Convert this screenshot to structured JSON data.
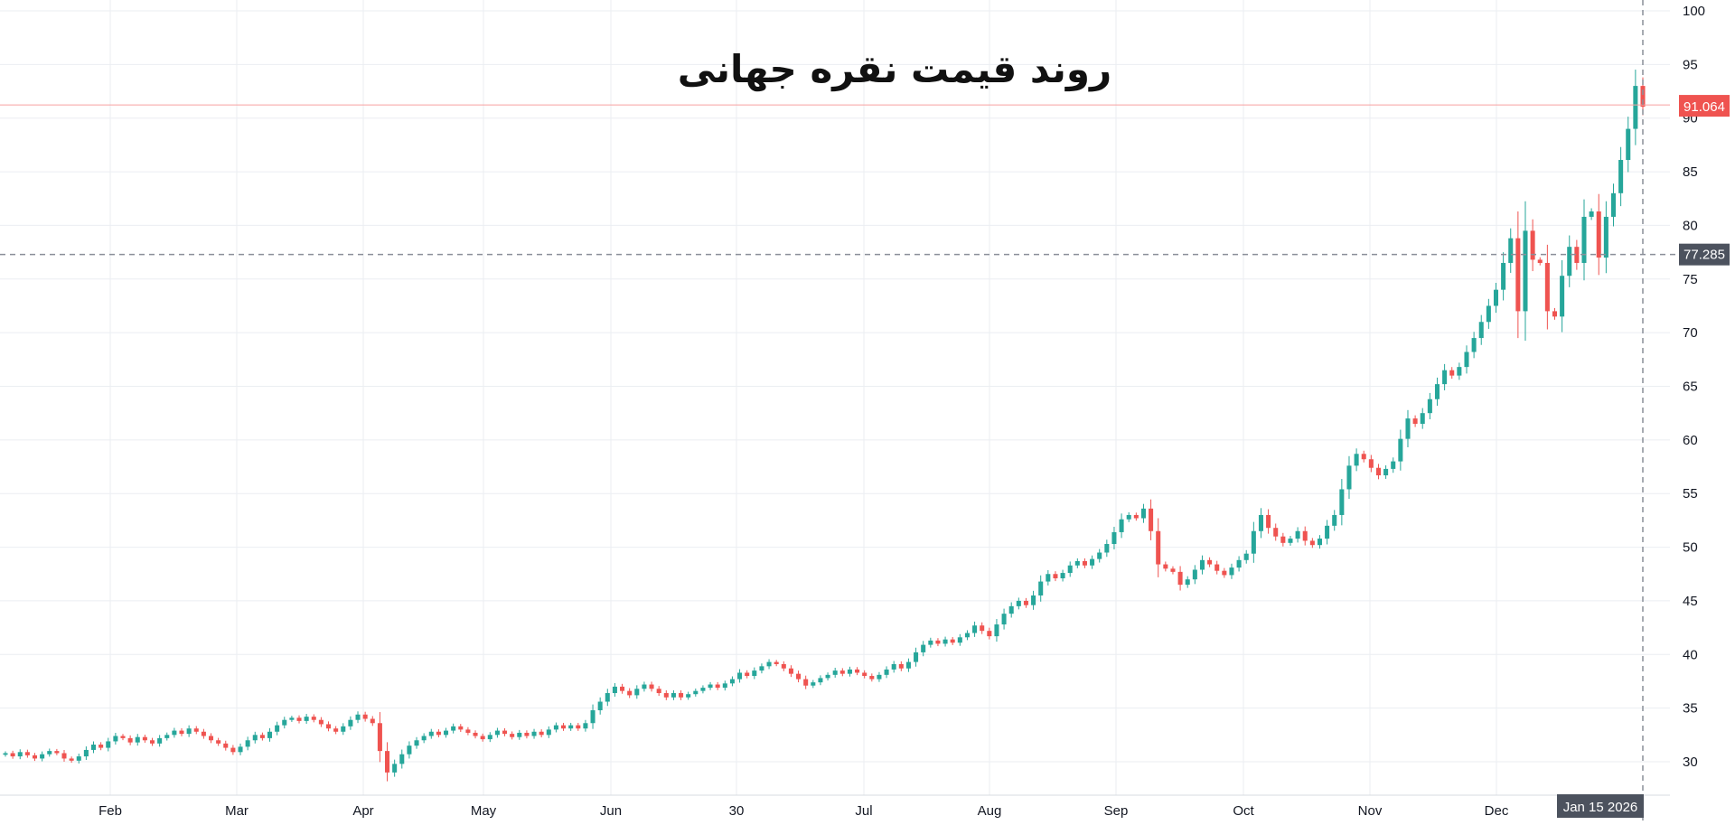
{
  "chart_data": {
    "type": "candlestick",
    "title": "روند قیمت نقره جهانی",
    "ylim": [
      26.5,
      101
    ],
    "y_ticks": [
      30,
      35,
      40,
      45,
      50,
      55,
      60,
      65,
      70,
      75,
      80,
      85,
      90,
      95,
      100
    ],
    "x_ticks": [
      "Feb",
      "Mar",
      "Apr",
      "May",
      "Jun",
      "30",
      "Jul",
      "Aug",
      "Sep",
      "Oct",
      "Nov",
      "Dec"
    ],
    "last_price": "91.064",
    "crosshair_price": "77.285",
    "crosshair_date": "Jan 15 2026",
    "grid": true,
    "colors": {
      "up": "#26a69a",
      "down": "#ef5350",
      "grid": "#ebeef2",
      "last_line": "#f7a1a0",
      "crosshair": "#8a8f99",
      "tag_dark": "#4c525e"
    },
    "series": [
      {
        "values": [
          30.8,
          30.5,
          30.9,
          30.6,
          30.3,
          30.7,
          31.0,
          30.8,
          30.3,
          30.1,
          30.5,
          31.1,
          31.6,
          31.3,
          31.9,
          32.4,
          32.2,
          31.8,
          32.3,
          32.0,
          31.7,
          32.2,
          32.5,
          32.9,
          32.6,
          33.1,
          32.8,
          32.4,
          32.0,
          31.7,
          31.3,
          30.9,
          31.4,
          32.0,
          32.5,
          32.2,
          32.8,
          33.4,
          33.9,
          34.1,
          33.8,
          34.2,
          33.9,
          33.5,
          33.1,
          32.8,
          33.3,
          33.9,
          34.4,
          34.0,
          33.6,
          31.0,
          29.0,
          29.8,
          30.7,
          31.5,
          32.0,
          32.4,
          32.8,
          32.5,
          32.9,
          33.3,
          33.0,
          32.7,
          32.4,
          32.1,
          32.5,
          32.9,
          32.6,
          32.3,
          32.7,
          32.4,
          32.8,
          32.5,
          33.0,
          33.4,
          33.1,
          33.4,
          33.1,
          33.6,
          34.8,
          35.6,
          36.4,
          37.0,
          36.6,
          36.2,
          36.8,
          37.2,
          36.8,
          36.4,
          36.0,
          36.4,
          36.0,
          36.3,
          36.6,
          36.9,
          37.2,
          36.9,
          37.3,
          37.7,
          38.3,
          38.0,
          38.5,
          38.9,
          39.3,
          39.1,
          38.7,
          38.2,
          37.7,
          37.1,
          37.4,
          37.8,
          38.1,
          38.5,
          38.2,
          38.6,
          38.3,
          38.0,
          37.7,
          38.1,
          38.6,
          39.1,
          38.7,
          39.3,
          40.2,
          40.9,
          41.3,
          41.0,
          41.4,
          41.1,
          41.6,
          42.0,
          42.7,
          42.2,
          41.7,
          42.8,
          43.8,
          44.5,
          45.0,
          44.6,
          45.5,
          46.8,
          47.5,
          47.1,
          47.6,
          48.3,
          48.7,
          48.3,
          48.9,
          49.5,
          50.3,
          51.4,
          52.6,
          53.0,
          52.7,
          53.6,
          51.5,
          48.4,
          48.0,
          47.7,
          46.5,
          47.0,
          47.9,
          48.8,
          48.4,
          47.8,
          47.4,
          48.1,
          48.8,
          49.4,
          51.5,
          53.0,
          51.8,
          51.0,
          50.4,
          50.8,
          51.5,
          50.6,
          50.2,
          50.8,
          52.0,
          53.0,
          55.4,
          57.6,
          58.7,
          58.2,
          57.4,
          56.7,
          57.3,
          58.0,
          60.1,
          62.0,
          61.5,
          62.5,
          63.8,
          65.2,
          66.5,
          66.0,
          66.8,
          68.2,
          69.5,
          71.0,
          72.5,
          74.0,
          76.5,
          78.8,
          72.0,
          79.5,
          76.8,
          76.5,
          72.0,
          71.5,
          75.3,
          78.0,
          76.5,
          80.8,
          81.3,
          77.0,
          80.8,
          83.0,
          86.1,
          89.0,
          93.0,
          91.064
        ]
      }
    ]
  }
}
